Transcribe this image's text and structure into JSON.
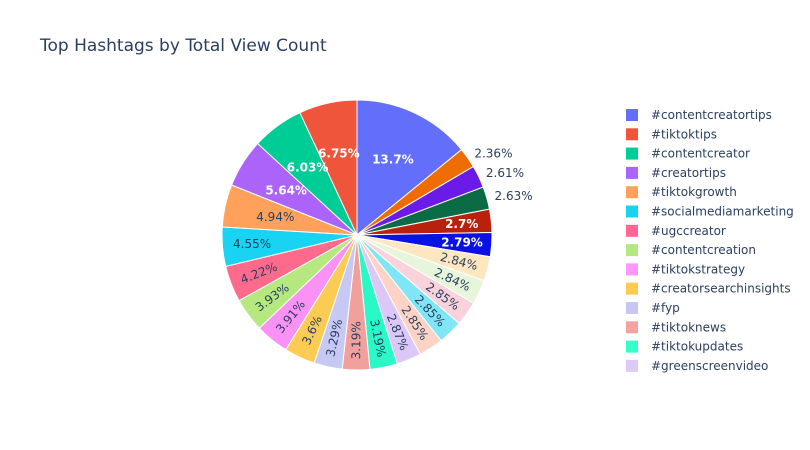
{
  "chart_data": {
    "type": "pie",
    "title": "Top Hashtags by Total View Count",
    "legend_position": "right",
    "slices": [
      {
        "label": "#contentcreatortips",
        "percent": 13.7,
        "text": "13.7%",
        "color": "#636efa",
        "inside": true
      },
      {
        "label": "",
        "percent": 2.36,
        "text": "2.36%",
        "color": "#ef6c00",
        "inside": false
      },
      {
        "label": "",
        "percent": 2.61,
        "text": "2.61%",
        "color": "#6a1be8",
        "inside": false
      },
      {
        "label": "",
        "percent": 2.63,
        "text": "2.63%",
        "color": "#0b6b45",
        "inside": false
      },
      {
        "label": "",
        "percent": 2.7,
        "text": "2.7%",
        "color": "#b8220d",
        "inside": true
      },
      {
        "label": "",
        "percent": 2.79,
        "text": "2.79%",
        "color": "#0b10e3",
        "inside": true
      },
      {
        "label": "",
        "percent": 2.84,
        "text": "2.84%",
        "color": "#fde6c0",
        "inside": true
      },
      {
        "label": "",
        "percent": 2.84,
        "text": "2.84%",
        "color": "#e7f6da",
        "inside": true
      },
      {
        "label": "",
        "percent": 2.85,
        "text": "2.85%",
        "color": "#fad2dc",
        "inside": true
      },
      {
        "label": "",
        "percent": 2.85,
        "text": "2.85%",
        "color": "#80e6f5",
        "inside": true
      },
      {
        "label": "",
        "percent": 2.85,
        "text": "2.85%",
        "color": "#fdd3c6",
        "inside": true
      },
      {
        "label": "#greenscreenvideo",
        "percent": 2.87,
        "text": "2.87%",
        "color": "#dcc8f8",
        "inside": true
      },
      {
        "label": "#tiktokupdates",
        "percent": 3.19,
        "text": "3.19%",
        "color": "#2af8c6",
        "inside": true
      },
      {
        "label": "#tiktoknews",
        "percent": 3.19,
        "text": "3.19%",
        "color": "#f0a19d",
        "inside": true
      },
      {
        "label": "#fyp",
        "percent": 3.29,
        "text": "3.29%",
        "color": "#c7c9f4",
        "inside": true
      },
      {
        "label": "#creatorsearchinsights",
        "percent": 3.6,
        "text": "3.6%",
        "color": "#fccb54",
        "inside": true
      },
      {
        "label": "#tiktokstrategy",
        "percent": 3.91,
        "text": "3.91%",
        "color": "#fa91f5",
        "inside": true
      },
      {
        "label": "#contentcreation",
        "percent": 3.93,
        "text": "3.93%",
        "color": "#b6e880",
        "inside": true
      },
      {
        "label": "#ugccreator",
        "percent": 4.22,
        "text": "4.22%",
        "color": "#fd6a8c",
        "inside": true
      },
      {
        "label": "#socialmediamarketing",
        "percent": 4.55,
        "text": "4.55%",
        "color": "#19d3f3",
        "inside": true
      },
      {
        "label": "#tiktokgrowth",
        "percent": 4.94,
        "text": "4.94%",
        "color": "#ffa15a",
        "inside": true
      },
      {
        "label": "#creatortips",
        "percent": 5.64,
        "text": "5.64%",
        "color": "#ab63fa",
        "inside": true
      },
      {
        "label": "#contentcreator",
        "percent": 6.03,
        "text": "6.03%",
        "color": "#00cc96",
        "inside": true
      },
      {
        "label": "#tiktoktips",
        "percent": 6.75,
        "text": "6.75%",
        "color": "#ef553b",
        "inside": true
      }
    ],
    "legend": [
      {
        "label": "#contentcreatortips",
        "color": "#636efa"
      },
      {
        "label": "#tiktoktips",
        "color": "#ef553b"
      },
      {
        "label": "#contentcreator",
        "color": "#00cc96"
      },
      {
        "label": "#creatortips",
        "color": "#ab63fa"
      },
      {
        "label": "#tiktokgrowth",
        "color": "#ffa15a"
      },
      {
        "label": "#socialmediamarketing",
        "color": "#19d3f3"
      },
      {
        "label": "#ugccreator",
        "color": "#ff6692"
      },
      {
        "label": "#contentcreation",
        "color": "#b6e880"
      },
      {
        "label": "#tiktokstrategy",
        "color": "#ff97ff"
      },
      {
        "label": "#creatorsearchinsights",
        "color": "#fecb52"
      },
      {
        "label": "#fyp",
        "color": "#c6c8f4"
      },
      {
        "label": "#tiktoknews",
        "color": "#f1a39d"
      },
      {
        "label": "#tiktokupdates",
        "color": "#33ffc9"
      },
      {
        "label": "#greenscreenvideo",
        "color": "#ddcaf9"
      }
    ]
  }
}
